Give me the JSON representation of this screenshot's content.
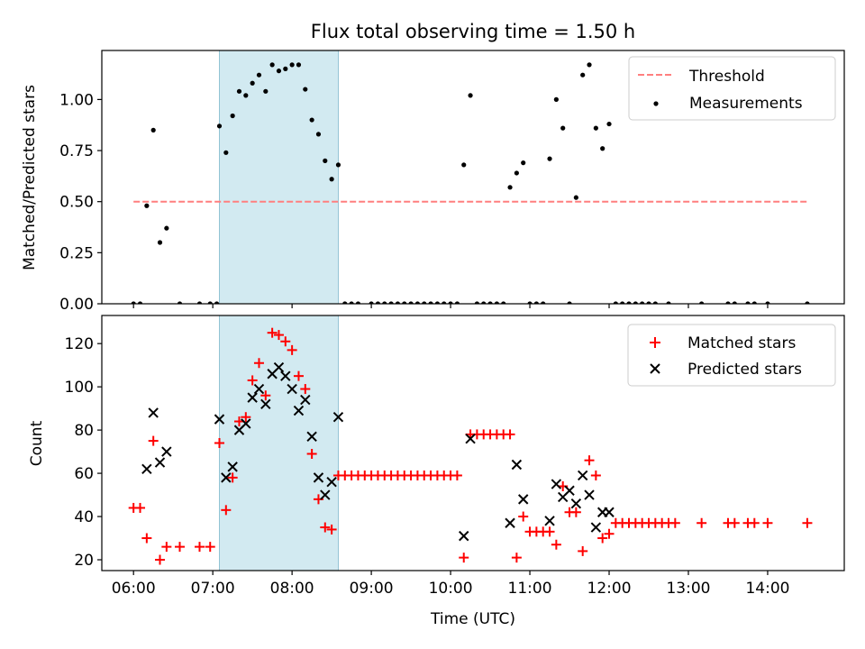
{
  "title": "Flux total observing time = 1.50 h",
  "xlabel": "Time (UTC)",
  "x_tick_labels": [
    "06:00",
    "07:00",
    "08:00",
    "09:00",
    "10:00",
    "11:00",
    "12:00",
    "13:00",
    "14:00"
  ],
  "colors": {
    "threshold": "#ff7f7f",
    "measurement": "#000000",
    "matched": "#ff0000",
    "predicted": "#000000",
    "span_fill": "#add8e6"
  },
  "chart_data": [
    {
      "type": "scatter",
      "ylabel": "Matched/Predicted stars",
      "xlim": [
        "05:36",
        "14:58"
      ],
      "ylim": [
        0,
        1.24
      ],
      "y_ticks": [
        "0.00",
        "0.25",
        "0.50",
        "0.75",
        "1.00"
      ],
      "highlight_span": [
        "07:05",
        "08:35"
      ],
      "threshold": {
        "name": "Threshold",
        "y": 0.5,
        "x_range": [
          "06:00",
          "14:30"
        ]
      },
      "legend": {
        "position": "upper right",
        "entries": [
          "Threshold",
          "Measurements"
        ]
      },
      "series": [
        {
          "name": "Measurements",
          "points": [
            [
              "06:00",
              0
            ],
            [
              "06:05",
              0
            ],
            [
              "06:10",
              0.48
            ],
            [
              "06:15",
              0.85
            ],
            [
              "06:20",
              0.3
            ],
            [
              "06:25",
              0.37
            ],
            [
              "06:35",
              0
            ],
            [
              "06:50",
              0
            ],
            [
              "06:58",
              0
            ],
            [
              "07:03",
              0
            ],
            [
              "07:05",
              0.87
            ],
            [
              "07:10",
              0.74
            ],
            [
              "07:15",
              0.92
            ],
            [
              "07:20",
              1.04
            ],
            [
              "07:25",
              1.02
            ],
            [
              "07:30",
              1.08
            ],
            [
              "07:35",
              1.12
            ],
            [
              "07:40",
              1.04
            ],
            [
              "07:45",
              1.17
            ],
            [
              "07:50",
              1.14
            ],
            [
              "07:55",
              1.15
            ],
            [
              "08:00",
              1.17
            ],
            [
              "08:05",
              1.17
            ],
            [
              "08:10",
              1.05
            ],
            [
              "08:15",
              0.9
            ],
            [
              "08:20",
              0.83
            ],
            [
              "08:25",
              0.7
            ],
            [
              "08:30",
              0.61
            ],
            [
              "08:35",
              0.68
            ],
            [
              "08:40",
              0
            ],
            [
              "08:45",
              0
            ],
            [
              "08:50",
              0
            ],
            [
              "09:00",
              0
            ],
            [
              "09:05",
              0
            ],
            [
              "09:10",
              0
            ],
            [
              "09:15",
              0
            ],
            [
              "09:20",
              0
            ],
            [
              "09:25",
              0
            ],
            [
              "09:30",
              0
            ],
            [
              "09:35",
              0
            ],
            [
              "09:40",
              0
            ],
            [
              "09:45",
              0
            ],
            [
              "09:50",
              0
            ],
            [
              "09:55",
              0
            ],
            [
              "10:00",
              0
            ],
            [
              "10:05",
              0
            ],
            [
              "10:10",
              0.68
            ],
            [
              "10:15",
              1.02
            ],
            [
              "10:20",
              0
            ],
            [
              "10:25",
              0
            ],
            [
              "10:30",
              0
            ],
            [
              "10:35",
              0
            ],
            [
              "10:40",
              0
            ],
            [
              "10:45",
              0.57
            ],
            [
              "10:50",
              0.64
            ],
            [
              "10:55",
              0.69
            ],
            [
              "11:00",
              0
            ],
            [
              "11:05",
              0
            ],
            [
              "11:10",
              0
            ],
            [
              "11:15",
              0.71
            ],
            [
              "11:20",
              1.0
            ],
            [
              "11:25",
              0.86
            ],
            [
              "11:30",
              0
            ],
            [
              "11:35",
              0.52
            ],
            [
              "11:40",
              1.12
            ],
            [
              "11:45",
              1.17
            ],
            [
              "11:50",
              0.86
            ],
            [
              "11:55",
              0.76
            ],
            [
              "12:00",
              0.88
            ],
            [
              "12:05",
              0
            ],
            [
              "12:10",
              0
            ],
            [
              "12:15",
              0
            ],
            [
              "12:20",
              0
            ],
            [
              "12:25",
              0
            ],
            [
              "12:30",
              0
            ],
            [
              "12:35",
              0
            ],
            [
              "12:45",
              0
            ],
            [
              "13:10",
              0
            ],
            [
              "13:30",
              0
            ],
            [
              "13:35",
              0
            ],
            [
              "13:45",
              0
            ],
            [
              "13:50",
              0
            ],
            [
              "14:00",
              0
            ],
            [
              "14:30",
              0
            ]
          ]
        }
      ]
    },
    {
      "type": "scatter",
      "ylabel": "Count",
      "xlim": [
        "05:36",
        "14:58"
      ],
      "ylim": [
        15,
        133
      ],
      "y_ticks": [
        "20",
        "40",
        "60",
        "80",
        "100",
        "120"
      ],
      "highlight_span": [
        "07:05",
        "08:35"
      ],
      "legend": {
        "position": "upper right",
        "entries": [
          "Matched stars",
          "Predicted stars"
        ]
      },
      "series": [
        {
          "name": "Matched stars",
          "marker": "+",
          "points": [
            [
              "06:00",
              44
            ],
            [
              "06:05",
              44
            ],
            [
              "06:10",
              30
            ],
            [
              "06:15",
              75
            ],
            [
              "06:20",
              20
            ],
            [
              "06:25",
              26
            ],
            [
              "06:35",
              26
            ],
            [
              "06:50",
              26
            ],
            [
              "06:58",
              26
            ],
            [
              "07:05",
              74
            ],
            [
              "07:10",
              43
            ],
            [
              "07:15",
              58
            ],
            [
              "07:20",
              84
            ],
            [
              "07:25",
              86
            ],
            [
              "07:30",
              103
            ],
            [
              "07:35",
              111
            ],
            [
              "07:40",
              96
            ],
            [
              "07:45",
              125
            ],
            [
              "07:50",
              124
            ],
            [
              "07:55",
              121
            ],
            [
              "08:00",
              117
            ],
            [
              "08:05",
              105
            ],
            [
              "08:10",
              99
            ],
            [
              "08:15",
              69
            ],
            [
              "08:20",
              48
            ],
            [
              "08:25",
              35
            ],
            [
              "08:30",
              34
            ],
            [
              "08:35",
              59
            ],
            [
              "08:40",
              59
            ],
            [
              "08:45",
              59
            ],
            [
              "08:50",
              59
            ],
            [
              "08:55",
              59
            ],
            [
              "09:00",
              59
            ],
            [
              "09:05",
              59
            ],
            [
              "09:10",
              59
            ],
            [
              "09:15",
              59
            ],
            [
              "09:20",
              59
            ],
            [
              "09:25",
              59
            ],
            [
              "09:30",
              59
            ],
            [
              "09:35",
              59
            ],
            [
              "09:40",
              59
            ],
            [
              "09:45",
              59
            ],
            [
              "09:50",
              59
            ],
            [
              "09:55",
              59
            ],
            [
              "10:00",
              59
            ],
            [
              "10:05",
              59
            ],
            [
              "10:10",
              21
            ],
            [
              "10:15",
              78
            ],
            [
              "10:20",
              78
            ],
            [
              "10:25",
              78
            ],
            [
              "10:30",
              78
            ],
            [
              "10:35",
              78
            ],
            [
              "10:40",
              78
            ],
            [
              "10:45",
              78
            ],
            [
              "10:50",
              21
            ],
            [
              "10:55",
              40
            ],
            [
              "11:00",
              33
            ],
            [
              "11:05",
              33
            ],
            [
              "11:10",
              33
            ],
            [
              "11:15",
              33
            ],
            [
              "11:20",
              27
            ],
            [
              "11:25",
              54
            ],
            [
              "11:30",
              42
            ],
            [
              "11:35",
              42
            ],
            [
              "11:40",
              24
            ],
            [
              "11:45",
              66
            ],
            [
              "11:50",
              59
            ],
            [
              "11:55",
              30
            ],
            [
              "12:00",
              32
            ],
            [
              "12:05",
              37
            ],
            [
              "12:10",
              37
            ],
            [
              "12:15",
              37
            ],
            [
              "12:20",
              37
            ],
            [
              "12:25",
              37
            ],
            [
              "12:30",
              37
            ],
            [
              "12:35",
              37
            ],
            [
              "12:40",
              37
            ],
            [
              "12:45",
              37
            ],
            [
              "12:50",
              37
            ],
            [
              "13:10",
              37
            ],
            [
              "13:30",
              37
            ],
            [
              "13:35",
              37
            ],
            [
              "13:45",
              37
            ],
            [
              "13:50",
              37
            ],
            [
              "14:00",
              37
            ],
            [
              "14:30",
              37
            ]
          ]
        },
        {
          "name": "Predicted stars",
          "marker": "x",
          "points": [
            [
              "06:10",
              62
            ],
            [
              "06:15",
              88
            ],
            [
              "06:20",
              65
            ],
            [
              "06:25",
              70
            ],
            [
              "07:05",
              85
            ],
            [
              "07:10",
              58
            ],
            [
              "07:15",
              63
            ],
            [
              "07:20",
              80
            ],
            [
              "07:25",
              83
            ],
            [
              "07:30",
              95
            ],
            [
              "07:35",
              99
            ],
            [
              "07:40",
              92
            ],
            [
              "07:45",
              106
            ],
            [
              "07:50",
              109
            ],
            [
              "07:55",
              105
            ],
            [
              "08:00",
              99
            ],
            [
              "08:05",
              89
            ],
            [
              "08:10",
              94
            ],
            [
              "08:15",
              77
            ],
            [
              "08:20",
              58
            ],
            [
              "08:25",
              50
            ],
            [
              "08:30",
              56
            ],
            [
              "08:35",
              86
            ],
            [
              "10:10",
              31
            ],
            [
              "10:15",
              76
            ],
            [
              "10:45",
              37
            ],
            [
              "10:50",
              64
            ],
            [
              "10:55",
              48
            ],
            [
              "11:15",
              38
            ],
            [
              "11:20",
              55
            ],
            [
              "11:25",
              49
            ],
            [
              "11:30",
              52
            ],
            [
              "11:35",
              46
            ],
            [
              "11:40",
              59
            ],
            [
              "11:45",
              50
            ],
            [
              "11:50",
              35
            ],
            [
              "11:55",
              42
            ],
            [
              "12:00",
              42
            ]
          ]
        }
      ]
    }
  ]
}
